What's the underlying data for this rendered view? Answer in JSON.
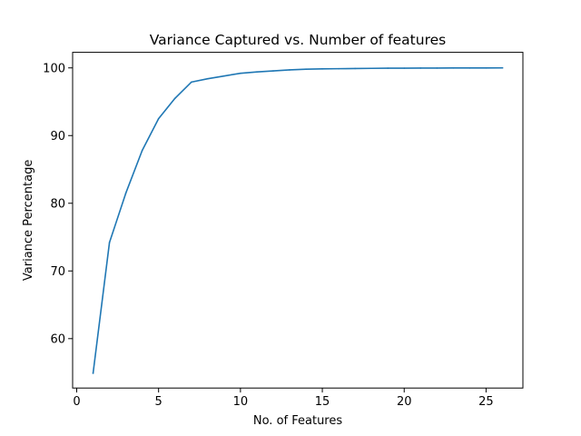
{
  "chart_data": {
    "type": "line",
    "title": "Variance Captured vs. Number of features",
    "xlabel": "No. of Features",
    "ylabel": "Variance Percentage",
    "xlim": [
      -0.25,
      27.25
    ],
    "ylim": [
      52.7,
      102.3
    ],
    "xticks": [
      0,
      5,
      10,
      15,
      20,
      25
    ],
    "yticks": [
      60,
      70,
      80,
      90,
      100
    ],
    "grid": false,
    "series": [
      {
        "color": "#1f77b4",
        "x": [
          1,
          2,
          3,
          4,
          5,
          6,
          7,
          8,
          9,
          10,
          11,
          12,
          13,
          14,
          15,
          16,
          17,
          18,
          19,
          20,
          21,
          22,
          23,
          24,
          25,
          26
        ],
        "y": [
          54.9,
          74.2,
          81.5,
          87.8,
          92.5,
          95.5,
          97.9,
          98.4,
          98.8,
          99.2,
          99.4,
          99.55,
          99.7,
          99.8,
          99.85,
          99.88,
          99.91,
          99.93,
          99.95,
          99.96,
          99.97,
          99.98,
          99.985,
          99.99,
          99.995,
          100.0
        ]
      }
    ]
  }
}
